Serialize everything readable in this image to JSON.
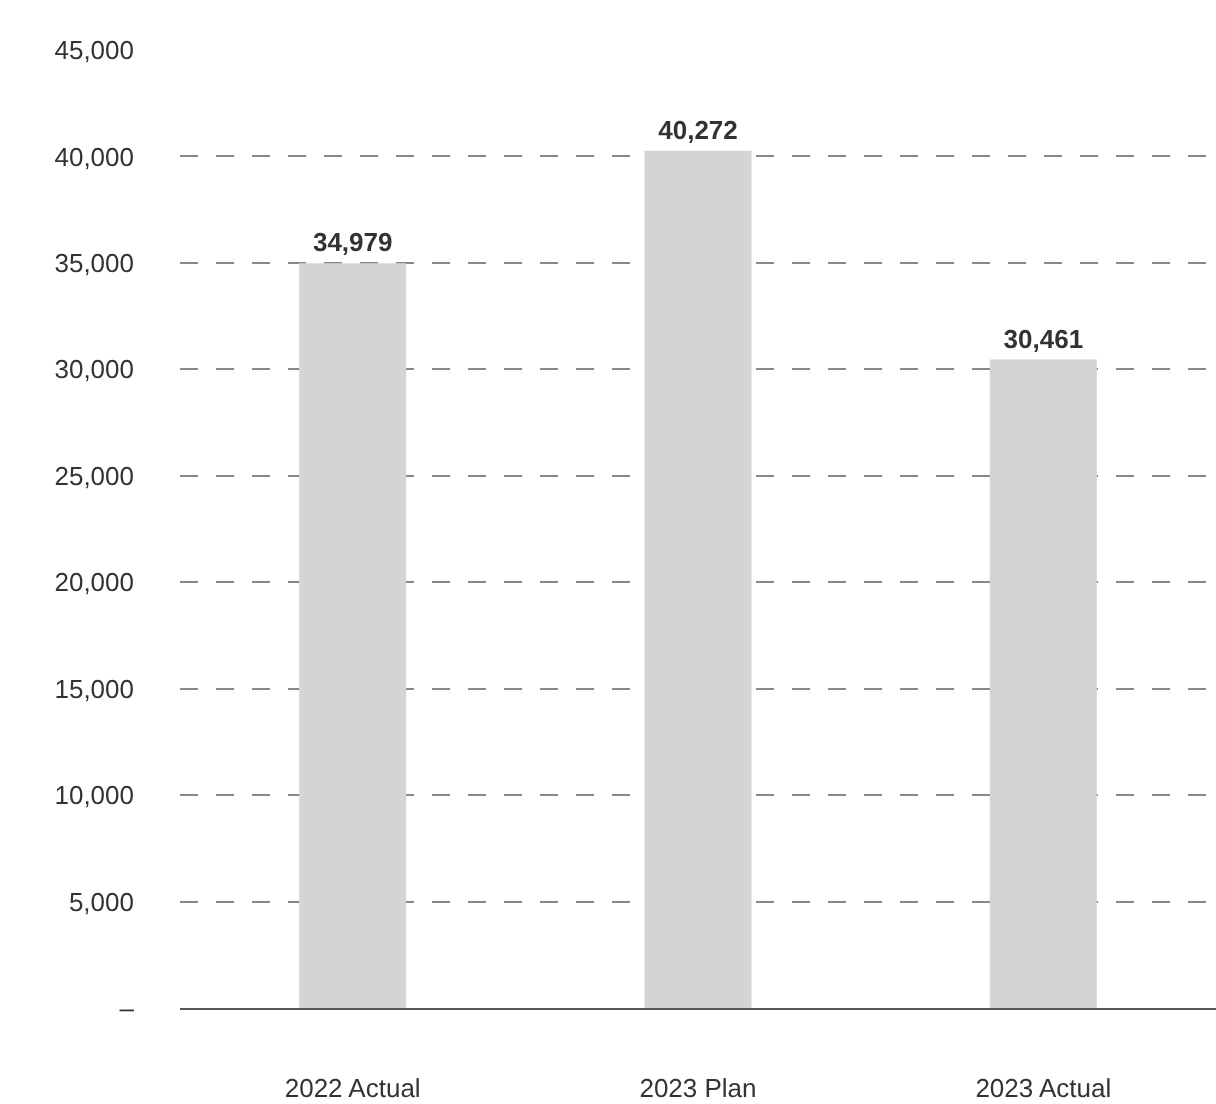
{
  "chart_data": {
    "type": "bar",
    "categories": [
      "2022 Actual",
      "2023 Plan",
      "2023 Actual"
    ],
    "values": [
      34979,
      40272,
      30461
    ],
    "color": "#d4d4d6",
    "ylim": [
      0,
      45000
    ],
    "yticks": [
      {
        "value": 0,
        "label": "–"
      },
      {
        "value": 5000,
        "label": "5,000"
      },
      {
        "value": 10000,
        "label": "10,000"
      },
      {
        "value": 15000,
        "label": "15,000"
      },
      {
        "value": 20000,
        "label": "20,000"
      },
      {
        "value": 25000,
        "label": "25,000"
      },
      {
        "value": 30000,
        "label": "30,000"
      },
      {
        "value": 35000,
        "label": "35,000"
      },
      {
        "value": 40000,
        "label": "40,000"
      },
      {
        "value": 45000,
        "label": "45,000"
      }
    ],
    "grid": "y",
    "value_labels": [
      "34,979",
      "40,272",
      "30,461"
    ]
  }
}
